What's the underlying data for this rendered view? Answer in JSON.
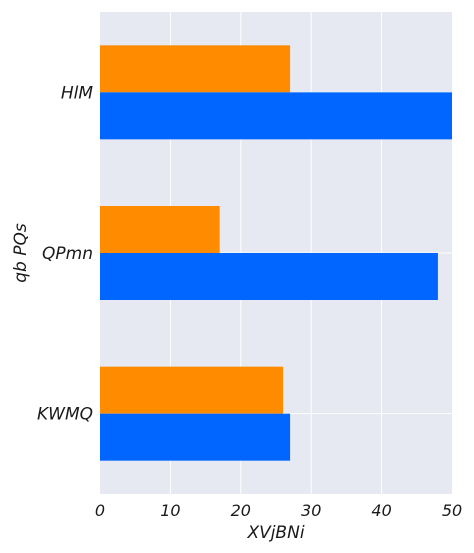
{
  "chart_data": {
    "type": "bar",
    "orientation": "horizontal",
    "categories": [
      "HlM",
      "QPmn",
      "KWMQ"
    ],
    "series": [
      {
        "color": "#ff8c00",
        "values": [
          27,
          17,
          26
        ]
      },
      {
        "color": "#0066ff",
        "values": [
          50,
          48,
          27
        ]
      }
    ],
    "xlabel": "XVjBNi",
    "ylabel": "qb PQs",
    "xlim": [
      0,
      50
    ],
    "xticks": [
      "0",
      "10",
      "20",
      "30",
      "40",
      "50"
    ],
    "grid": true,
    "background": "#e6e8f2",
    "legend": "none"
  }
}
